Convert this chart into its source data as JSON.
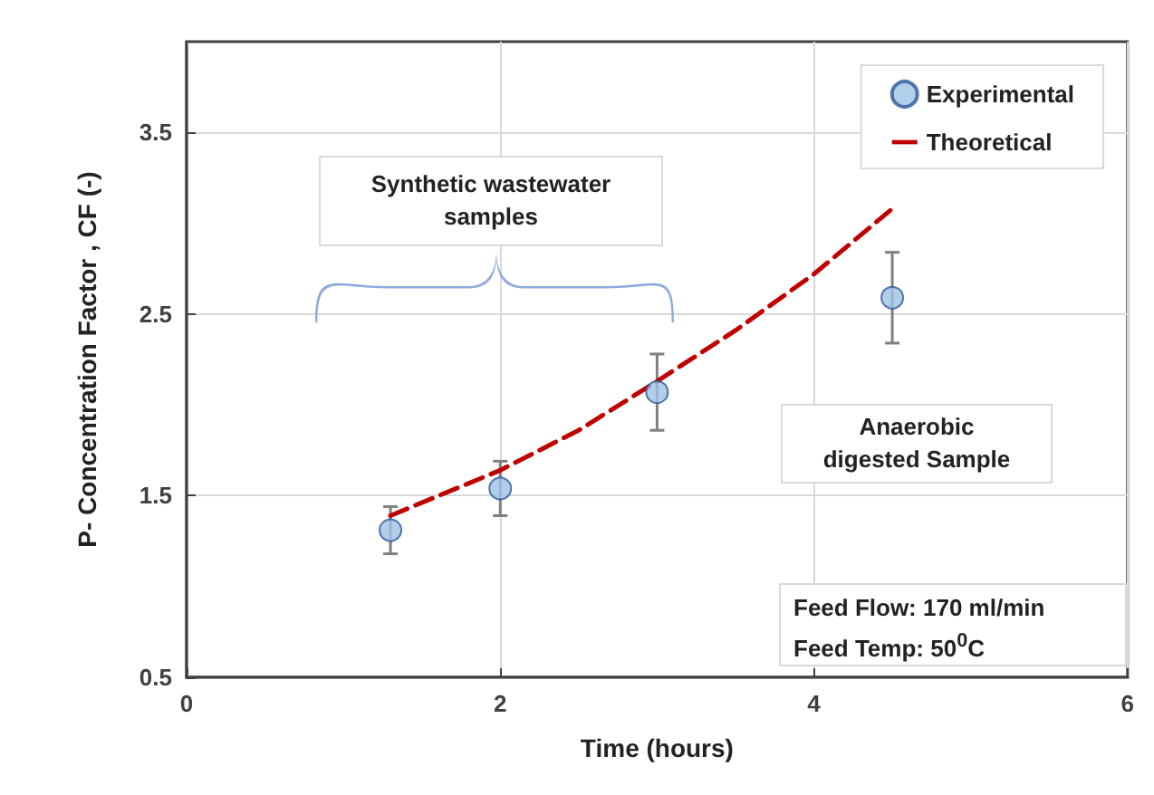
{
  "chart_data": {
    "type": "scatter",
    "xlabel": "Time (hours)",
    "ylabel": "P- Concentration Factor , CF (-)",
    "xlim": [
      0,
      6
    ],
    "xticks": [
      0,
      2,
      4,
      6
    ],
    "ylim": [
      0.5,
      4
    ],
    "yticks": [
      0.5,
      1.5,
      2.5,
      3.5
    ],
    "grid": true,
    "legend": "top right",
    "series": [
      {
        "name": "Experimental",
        "type": "scatter",
        "color": "#9dc3e6",
        "marker": "circle",
        "x": [
          1.3,
          2,
          3,
          4.5
        ],
        "values": [
          1.31,
          1.54,
          2.07,
          2.59
        ],
        "errors": [
          0.13,
          0.15,
          0.21,
          0.25
        ]
      },
      {
        "name": "Theoretical",
        "type": "line",
        "color": "#c00000",
        "marker": "none",
        "line_style": "dashed",
        "x": [
          1.3,
          2,
          2.5,
          3,
          3.5,
          4,
          4.5
        ],
        "values": [
          1.39,
          1.64,
          1.86,
          2.13,
          2.41,
          2.72,
          3.08
        ]
      }
    ],
    "annotations": [
      "Synthetic wastewater samples",
      "Anaerobic digested Sample",
      "Feed Flow: 170 ml/min\nFeed Temp: 50$^{0}$C"
    ]
  }
}
